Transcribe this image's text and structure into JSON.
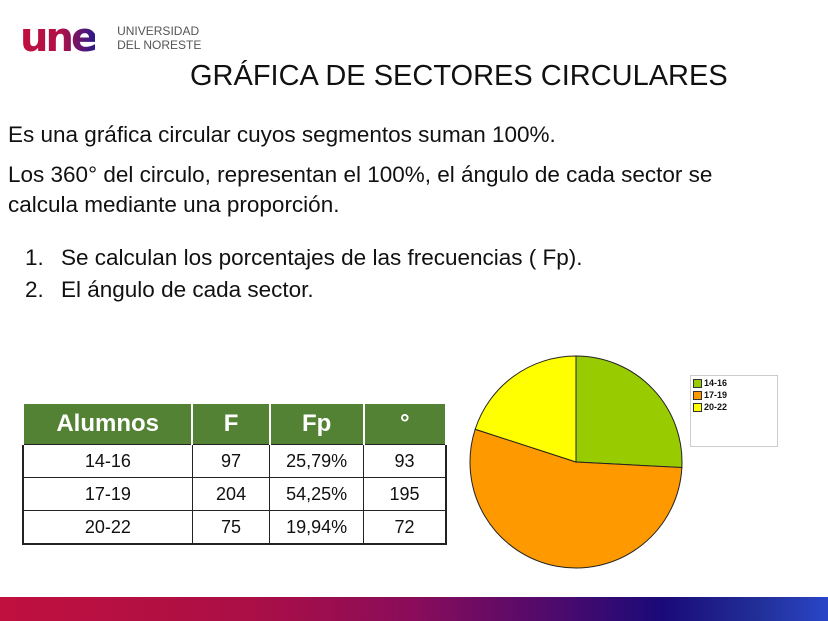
{
  "logo": {
    "mark": "une",
    "line1": "UNIVERSIDAD",
    "line2": "DEL NORESTE"
  },
  "title": "GRÁFICA DE SECTORES CIRCULARES",
  "para1": "Es una gráfica circular cuyos segmentos suman 100%.",
  "para2": "Los 360° del circulo, representan el 100%, el ángulo de cada sector se calcula mediante una proporción.",
  "steps": [
    {
      "num": "1.",
      "text": "Se calculan los porcentajes de las frecuencias ( Fp)."
    },
    {
      "num": "2.",
      "text": "El ángulo de cada sector."
    }
  ],
  "table": {
    "headers": [
      "Alumnos",
      "F",
      "Fp",
      "°"
    ],
    "rows": [
      [
        "14-16",
        "97",
        "25,79%",
        "93"
      ],
      [
        "17-19",
        "204",
        "54,25%",
        "195"
      ],
      [
        "20-22",
        "75",
        "19,94%",
        "72"
      ]
    ],
    "header_color": "#548235"
  },
  "chart_data": {
    "type": "pie",
    "categories": [
      "14-16",
      "17-19",
      "20-22"
    ],
    "values": [
      93,
      195,
      72
    ],
    "colors": [
      "#99cc00",
      "#ff9900",
      "#ffff00"
    ],
    "legend": "right"
  }
}
